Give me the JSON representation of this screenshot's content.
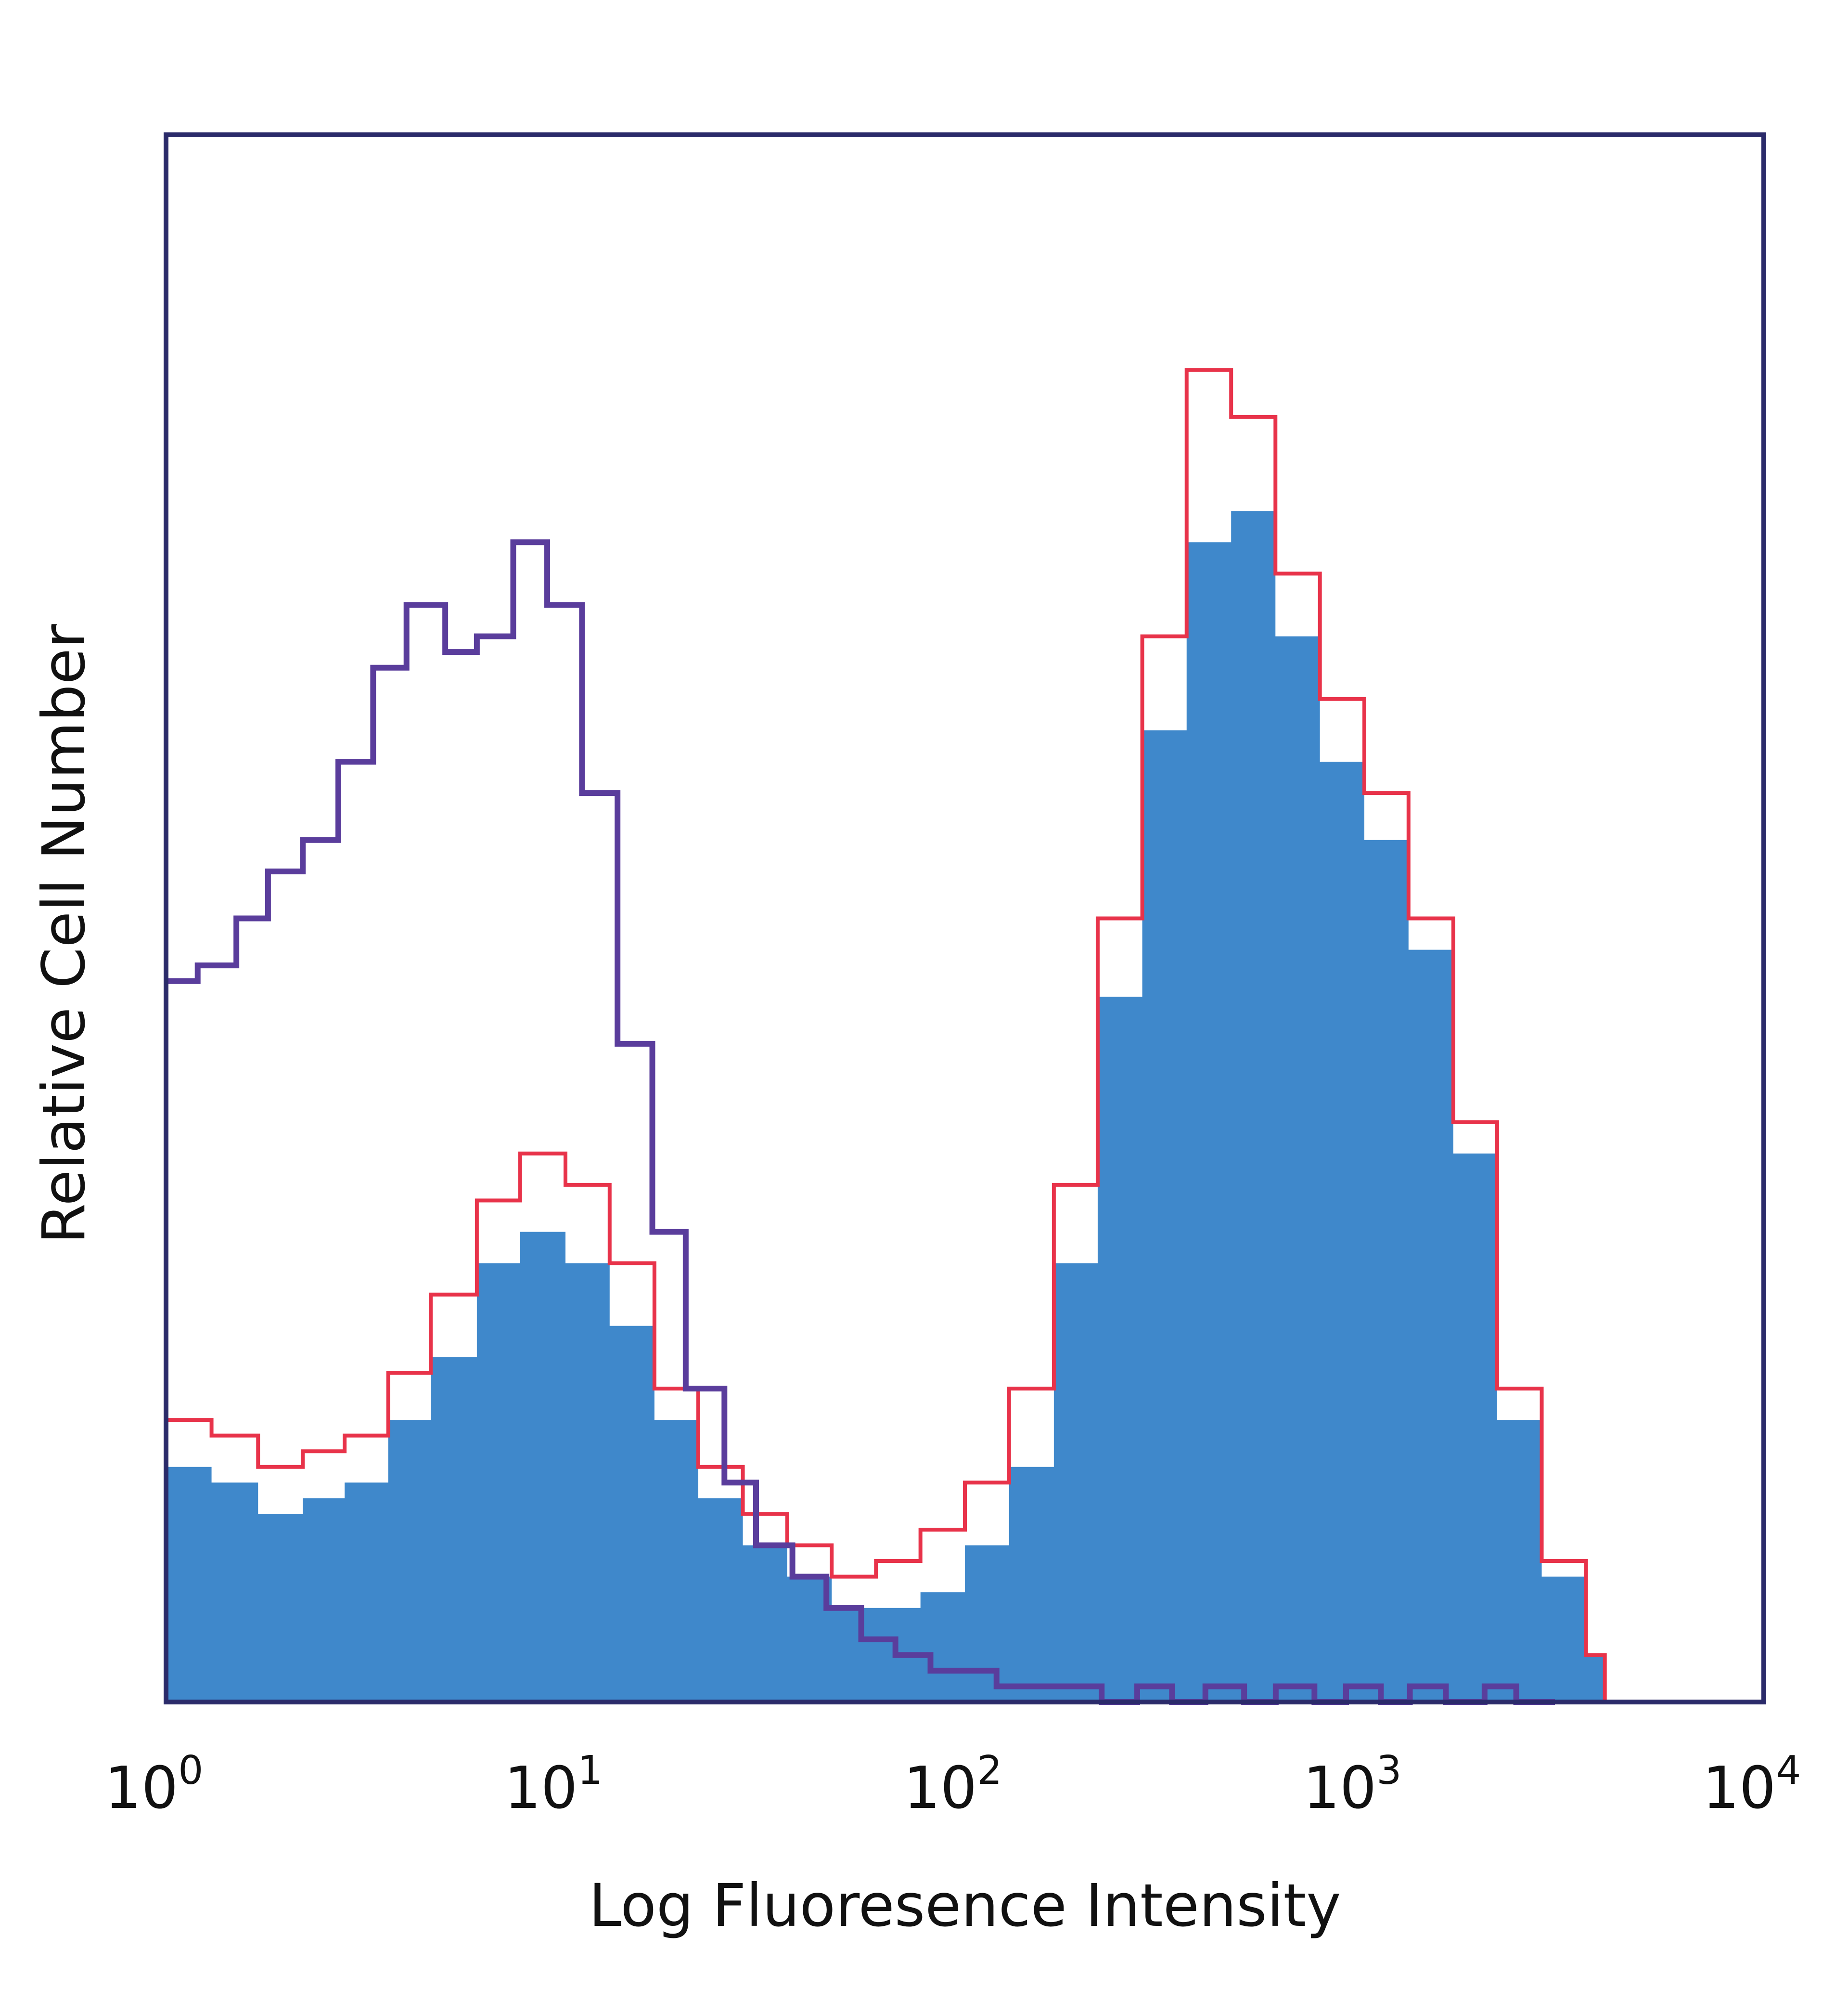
{
  "chart_data": {
    "type": "area",
    "title": "",
    "xlabel": "Log Fluoresence Intensity",
    "ylabel": "Relative Cell Number",
    "x_scale": "log",
    "xlim": [
      1,
      10000
    ],
    "ylim": [
      0,
      1
    ],
    "grid": false,
    "legend": "none",
    "x_ticks": [
      {
        "base": "10",
        "exp": "0"
      },
      {
        "base": "10",
        "exp": "1"
      },
      {
        "base": "10",
        "exp": "2"
      },
      {
        "base": "10",
        "exp": "3"
      },
      {
        "base": "10",
        "exp": "4"
      }
    ],
    "colors": {
      "fill": "#3f88cb",
      "outline": "#e8334a",
      "control": "#5a3d9c",
      "frame": "#2b2b6a"
    },
    "series": [
      {
        "style": "filled",
        "x": [
          1,
          1.3,
          1.7,
          2.2,
          2.8,
          3.6,
          4.6,
          6,
          7.7,
          10,
          12.9,
          16.7,
          21.5,
          27.8,
          35.9,
          46.4,
          59.9,
          77.4,
          100,
          129,
          167,
          215,
          278,
          359,
          464,
          599,
          774,
          1000,
          1290,
          1670,
          2150,
          2780,
          3590,
          4000
        ],
        "values": [
          0.15,
          0.14,
          0.12,
          0.13,
          0.14,
          0.18,
          0.22,
          0.28,
          0.3,
          0.28,
          0.24,
          0.18,
          0.13,
          0.1,
          0.08,
          0.06,
          0.06,
          0.07,
          0.1,
          0.15,
          0.28,
          0.45,
          0.62,
          0.74,
          0.76,
          0.68,
          0.6,
          0.55,
          0.48,
          0.35,
          0.18,
          0.08,
          0.03,
          0
        ]
      },
      {
        "style": "outline",
        "x": [
          1,
          1.3,
          1.7,
          2.2,
          2.8,
          3.6,
          4.6,
          6,
          7.7,
          10,
          12.9,
          16.7,
          21.5,
          27.8,
          35.9,
          46.4,
          59.9,
          77.4,
          100,
          129,
          167,
          215,
          278,
          359,
          464,
          599,
          774,
          1000,
          1290,
          1670,
          2150,
          2780,
          3590,
          4000
        ],
        "values": [
          0.18,
          0.17,
          0.15,
          0.16,
          0.17,
          0.21,
          0.26,
          0.32,
          0.35,
          0.33,
          0.28,
          0.2,
          0.15,
          0.12,
          0.1,
          0.08,
          0.09,
          0.11,
          0.14,
          0.2,
          0.33,
          0.5,
          0.68,
          0.85,
          0.82,
          0.72,
          0.64,
          0.58,
          0.5,
          0.37,
          0.2,
          0.09,
          0.03,
          0
        ]
      },
      {
        "style": "line",
        "x": [
          1,
          1.2,
          1.5,
          1.8,
          2.2,
          2.7,
          3.3,
          4,
          5,
          6,
          7.4,
          9,
          11,
          13.5,
          16.5,
          20,
          25,
          30,
          37,
          45,
          55,
          67,
          82,
          100,
          120,
          150,
          180,
          220,
          270,
          330,
          400,
          500,
          600,
          750,
          900,
          1100,
          1300,
          1600,
          2000,
          2400,
          3000
        ],
        "values": [
          0.46,
          0.47,
          0.5,
          0.53,
          0.55,
          0.6,
          0.66,
          0.7,
          0.67,
          0.68,
          0.74,
          0.7,
          0.58,
          0.42,
          0.3,
          0.2,
          0.14,
          0.1,
          0.08,
          0.06,
          0.04,
          0.03,
          0.02,
          0.02,
          0.01,
          0.01,
          0.01,
          0,
          0.01,
          0,
          0.01,
          0,
          0.01,
          0,
          0.01,
          0,
          0.01,
          0,
          0.01,
          0,
          0
        ]
      }
    ]
  }
}
